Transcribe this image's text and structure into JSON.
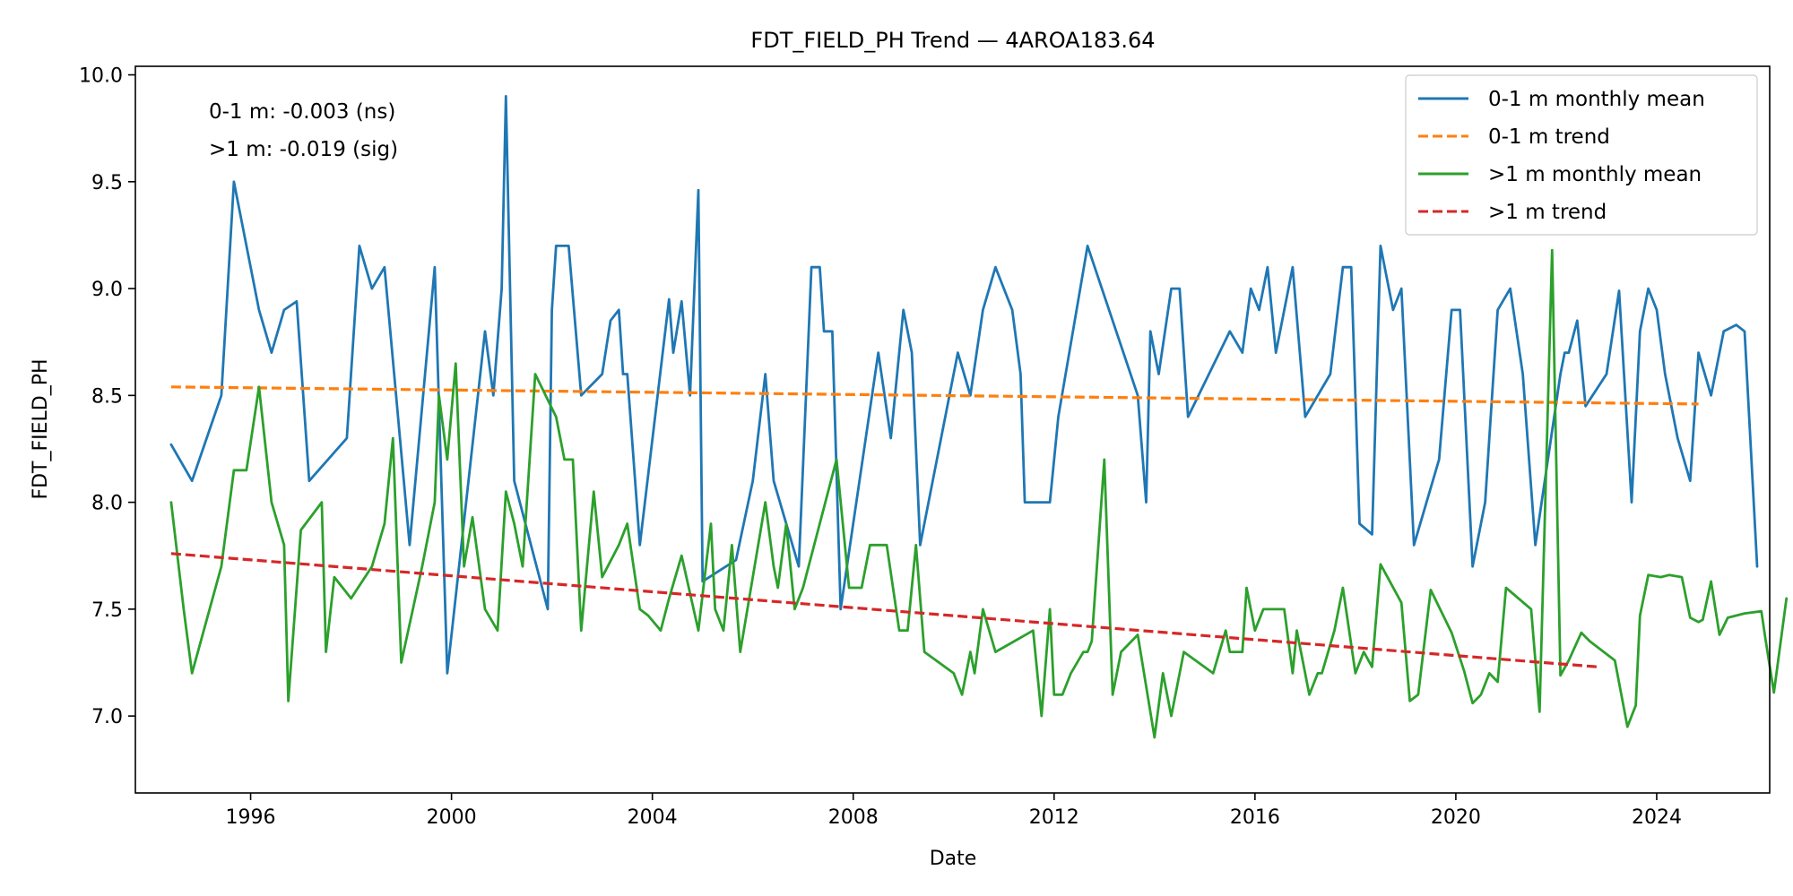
{
  "chart_data": {
    "type": "line",
    "title": "FDT_FIELD_PH Trend — 4AROA183.64",
    "xlabel": "Date",
    "ylabel": "FDT_FIELD_PH",
    "xlim": [
      "1993-09-15",
      "2026-04-01"
    ],
    "ylim": [
      6.64,
      10.04
    ],
    "x_ticks": [
      "1996",
      "2000",
      "2004",
      "2008",
      "2012",
      "2016",
      "2020",
      "2024"
    ],
    "y_ticks": [
      "7.0",
      "7.5",
      "8.0",
      "8.5",
      "9.0",
      "9.5",
      "10.0"
    ],
    "grid": false,
    "legend_position": "top-right",
    "annotations": [
      "0-1 m: -0.003 (ns)",
      ">1 m: -0.019 (sig)"
    ],
    "series": [
      {
        "name": "0-1 m monthly mean",
        "style": "solid",
        "color": "#1f77b4",
        "points": [
          [
            "1994-06",
            8.27
          ],
          [
            "1994-11",
            8.1
          ],
          [
            "1995-06",
            8.5
          ],
          [
            "1995-09",
            9.5
          ],
          [
            "1996-03",
            8.9
          ],
          [
            "1996-06",
            8.7
          ],
          [
            "1996-09",
            8.9
          ],
          [
            "1996-12",
            8.94
          ],
          [
            "1997-03",
            8.1
          ],
          [
            "1997-12",
            8.3
          ],
          [
            "1998-03",
            9.2
          ],
          [
            "1998-06",
            9.0
          ],
          [
            "1998-09",
            9.1
          ],
          [
            "1999-03",
            7.8
          ],
          [
            "1999-09",
            9.1
          ],
          [
            "1999-12",
            7.2
          ],
          [
            "2000-09",
            8.8
          ],
          [
            "2000-11",
            8.5
          ],
          [
            "2001-01",
            9.0
          ],
          [
            "2001-02",
            9.9
          ],
          [
            "2001-04",
            8.1
          ],
          [
            "2001-12",
            7.5
          ],
          [
            "2002-01",
            8.9
          ],
          [
            "2002-02",
            9.2
          ],
          [
            "2002-05",
            9.2
          ],
          [
            "2002-08",
            8.5
          ],
          [
            "2003-01",
            8.6
          ],
          [
            "2003-03",
            8.85
          ],
          [
            "2003-05",
            8.9
          ],
          [
            "2003-06",
            8.6
          ],
          [
            "2003-07",
            8.6
          ],
          [
            "2003-10",
            7.8
          ],
          [
            "2004-05",
            8.95
          ],
          [
            "2004-06",
            8.7
          ],
          [
            "2004-08",
            8.94
          ],
          [
            "2004-10",
            8.5
          ],
          [
            "2004-12",
            9.46
          ],
          [
            "2005-01",
            7.63
          ],
          [
            "2005-09",
            7.73
          ],
          [
            "2006-01",
            8.1
          ],
          [
            "2006-04",
            8.6
          ],
          [
            "2006-06",
            8.1
          ],
          [
            "2006-12",
            7.7
          ],
          [
            "2007-03",
            9.1
          ],
          [
            "2007-05",
            9.1
          ],
          [
            "2007-06",
            8.8
          ],
          [
            "2007-08",
            8.8
          ],
          [
            "2007-10",
            7.5
          ],
          [
            "2008-07",
            8.7
          ],
          [
            "2008-10",
            8.3
          ],
          [
            "2009-01",
            8.9
          ],
          [
            "2009-03",
            8.7
          ],
          [
            "2009-05",
            7.8
          ],
          [
            "2010-02",
            8.7
          ],
          [
            "2010-05",
            8.5
          ],
          [
            "2010-08",
            8.9
          ],
          [
            "2010-11",
            9.1
          ],
          [
            "2011-03",
            8.9
          ],
          [
            "2011-05",
            8.6
          ],
          [
            "2011-06",
            8.0
          ],
          [
            "2011-08",
            8.0
          ],
          [
            "2011-12",
            8.0
          ],
          [
            "2012-02",
            8.4
          ],
          [
            "2012-09",
            9.2
          ],
          [
            "2013-09",
            8.5
          ],
          [
            "2013-11",
            8.0
          ],
          [
            "2013-12",
            8.8
          ],
          [
            "2014-02",
            8.6
          ],
          [
            "2014-05",
            9.0
          ],
          [
            "2014-07",
            9.0
          ],
          [
            "2014-09",
            8.4
          ],
          [
            "2015-07",
            8.8
          ],
          [
            "2015-10",
            8.7
          ],
          [
            "2015-12",
            9.0
          ],
          [
            "2016-02",
            8.9
          ],
          [
            "2016-04",
            9.1
          ],
          [
            "2016-06",
            8.7
          ],
          [
            "2016-10",
            9.1
          ],
          [
            "2017-01",
            8.4
          ],
          [
            "2017-07",
            8.6
          ],
          [
            "2017-10",
            9.1
          ],
          [
            "2017-12",
            9.1
          ],
          [
            "2018-02",
            7.9
          ],
          [
            "2018-05",
            7.85
          ],
          [
            "2018-07",
            9.2
          ],
          [
            "2018-10",
            8.9
          ],
          [
            "2018-12",
            9.0
          ],
          [
            "2019-03",
            7.8
          ],
          [
            "2019-09",
            8.2
          ],
          [
            "2019-12",
            8.9
          ],
          [
            "2020-02",
            8.9
          ],
          [
            "2020-05",
            7.7
          ],
          [
            "2020-08",
            8.0
          ],
          [
            "2020-11",
            8.9
          ],
          [
            "2021-02",
            9.0
          ],
          [
            "2021-05",
            8.6
          ],
          [
            "2021-08",
            7.8
          ],
          [
            "2022-02",
            8.6
          ],
          [
            "2022-03",
            8.7
          ],
          [
            "2022-04",
            8.7
          ],
          [
            "2022-06",
            8.85
          ],
          [
            "2022-08",
            8.45
          ],
          [
            "2023-01",
            8.6
          ],
          [
            "2023-04",
            8.99
          ],
          [
            "2023-07",
            8.0
          ],
          [
            "2023-09",
            8.8
          ],
          [
            "2023-11",
            9.0
          ],
          [
            "2024-01",
            8.9
          ],
          [
            "2024-03",
            8.6
          ],
          [
            "2024-06",
            8.3
          ],
          [
            "2024-09",
            8.1
          ],
          [
            "2024-11",
            8.7
          ],
          [
            "2025-02",
            8.5
          ],
          [
            "2025-05",
            8.8
          ],
          [
            "2025-08",
            8.83
          ],
          [
            "2025-10",
            8.8
          ],
          [
            "2026-01",
            7.7
          ]
        ]
      },
      {
        "name": "0-1 m trend",
        "style": "dashed",
        "color": "#ff7f0e",
        "points": [
          [
            "1994-06",
            8.54
          ],
          [
            "2024-11",
            8.46
          ]
        ]
      },
      {
        "name": ">1 m monthly mean",
        "style": "solid",
        "color": "#2ca02c",
        "points": [
          [
            "1994-06",
            8.0
          ],
          [
            "1994-09",
            7.5
          ],
          [
            "1994-11",
            7.2
          ],
          [
            "1995-06",
            7.7
          ],
          [
            "1995-09",
            8.15
          ],
          [
            "1995-12",
            8.15
          ],
          [
            "1996-03",
            8.54
          ],
          [
            "1996-06",
            8.0
          ],
          [
            "1996-09",
            7.8
          ],
          [
            "1996-10",
            7.07
          ],
          [
            "1997-01",
            7.87
          ],
          [
            "1997-06",
            8.0
          ],
          [
            "1997-07",
            7.3
          ],
          [
            "1997-09",
            7.65
          ],
          [
            "1998-01",
            7.55
          ],
          [
            "1998-06",
            7.7
          ],
          [
            "1998-09",
            7.9
          ],
          [
            "1998-11",
            8.3
          ],
          [
            "1999-01",
            7.25
          ],
          [
            "1999-06",
            7.7
          ],
          [
            "1999-09",
            8.0
          ],
          [
            "1999-10",
            8.5
          ],
          [
            "1999-12",
            8.2
          ],
          [
            "2000-02",
            8.65
          ],
          [
            "2000-04",
            7.7
          ],
          [
            "2000-06",
            7.93
          ],
          [
            "2000-09",
            7.5
          ],
          [
            "2000-12",
            7.4
          ],
          [
            "2001-02",
            8.05
          ],
          [
            "2001-04",
            7.9
          ],
          [
            "2001-06",
            7.7
          ],
          [
            "2001-09",
            8.6
          ],
          [
            "2002-02",
            8.4
          ],
          [
            "2002-04",
            8.2
          ],
          [
            "2002-06",
            8.2
          ],
          [
            "2002-08",
            7.4
          ],
          [
            "2002-11",
            8.05
          ],
          [
            "2003-01",
            7.65
          ],
          [
            "2003-05",
            7.8
          ],
          [
            "2003-07",
            7.9
          ],
          [
            "2003-10",
            7.5
          ],
          [
            "2003-12",
            7.47
          ],
          [
            "2004-03",
            7.4
          ],
          [
            "2004-05",
            7.55
          ],
          [
            "2004-08",
            7.75
          ],
          [
            "2004-12",
            7.4
          ],
          [
            "2005-03",
            7.9
          ],
          [
            "2005-04",
            7.5
          ],
          [
            "2005-06",
            7.4
          ],
          [
            "2005-08",
            7.8
          ],
          [
            "2005-10",
            7.3
          ],
          [
            "2006-04",
            8.0
          ],
          [
            "2006-06",
            7.7
          ],
          [
            "2006-07",
            7.6
          ],
          [
            "2006-09",
            7.9
          ],
          [
            "2006-11",
            7.5
          ],
          [
            "2007-01",
            7.6
          ],
          [
            "2007-09",
            8.2
          ],
          [
            "2007-12",
            7.6
          ],
          [
            "2008-03",
            7.6
          ],
          [
            "2008-05",
            7.8
          ],
          [
            "2008-09",
            7.8
          ],
          [
            "2008-12",
            7.4
          ],
          [
            "2009-02",
            7.4
          ],
          [
            "2009-04",
            7.8
          ],
          [
            "2009-06",
            7.3
          ],
          [
            "2010-01",
            7.2
          ],
          [
            "2010-03",
            7.1
          ],
          [
            "2010-05",
            7.3
          ],
          [
            "2010-06",
            7.2
          ],
          [
            "2010-08",
            7.5
          ],
          [
            "2010-11",
            7.3
          ],
          [
            "2011-08",
            7.4
          ],
          [
            "2011-10",
            7.0
          ],
          [
            "2011-12",
            7.5
          ],
          [
            "2012-01",
            7.1
          ],
          [
            "2012-03",
            7.1
          ],
          [
            "2012-05",
            7.2
          ],
          [
            "2012-08",
            7.3
          ],
          [
            "2012-09",
            7.3
          ],
          [
            "2012-10",
            7.35
          ],
          [
            "2013-01",
            8.2
          ],
          [
            "2013-03",
            7.1
          ],
          [
            "2013-05",
            7.3
          ],
          [
            "2013-09",
            7.38
          ],
          [
            "2014-01",
            6.9
          ],
          [
            "2014-03",
            7.2
          ],
          [
            "2014-05",
            7.0
          ],
          [
            "2014-08",
            7.3
          ],
          [
            "2015-03",
            7.2
          ],
          [
            "2015-06",
            7.4
          ],
          [
            "2015-07",
            7.3
          ],
          [
            "2015-10",
            7.3
          ],
          [
            "2015-11",
            7.6
          ],
          [
            "2016-01",
            7.4
          ],
          [
            "2016-03",
            7.5
          ],
          [
            "2016-06",
            7.5
          ],
          [
            "2016-08",
            7.5
          ],
          [
            "2016-10",
            7.2
          ],
          [
            "2016-11",
            7.4
          ],
          [
            "2017-02",
            7.1
          ],
          [
            "2017-04",
            7.2
          ],
          [
            "2017-05",
            7.2
          ],
          [
            "2017-08",
            7.4
          ],
          [
            "2017-10",
            7.6
          ],
          [
            "2018-01",
            7.2
          ],
          [
            "2018-03",
            7.3
          ],
          [
            "2018-05",
            7.23
          ],
          [
            "2018-07",
            7.71
          ],
          [
            "2018-12",
            7.53
          ],
          [
            "2019-02",
            7.07
          ],
          [
            "2019-04",
            7.1
          ],
          [
            "2019-07",
            7.59
          ],
          [
            "2019-12",
            7.39
          ],
          [
            "2020-03",
            7.21
          ],
          [
            "2020-05",
            7.06
          ],
          [
            "2020-07",
            7.1
          ],
          [
            "2020-09",
            7.2
          ],
          [
            "2020-11",
            7.16
          ],
          [
            "2021-01",
            7.6
          ],
          [
            "2021-07",
            7.5
          ],
          [
            "2021-09",
            7.02
          ],
          [
            "2021-12",
            9.18
          ],
          [
            "2022-02",
            7.19
          ],
          [
            "2022-04",
            7.26
          ],
          [
            "2022-07",
            7.39
          ],
          [
            "2022-09",
            7.35
          ],
          [
            "2023-03",
            7.26
          ],
          [
            "2023-06",
            6.95
          ],
          [
            "2023-08",
            7.05
          ],
          [
            "2023-09",
            7.47
          ],
          [
            "2023-11",
            7.66
          ],
          [
            "2024-02",
            7.65
          ],
          [
            "2024-04",
            7.66
          ],
          [
            "2024-07",
            7.65
          ],
          [
            "2024-09",
            7.46
          ],
          [
            "2024-11",
            7.44
          ],
          [
            "2024-12",
            7.45
          ],
          [
            "2025-02",
            7.63
          ],
          [
            "2025-04",
            7.38
          ],
          [
            "2025-06",
            7.46
          ],
          [
            "2025-10",
            7.48
          ],
          [
            "2026-02",
            7.49
          ],
          [
            "2026-03",
            7.36
          ],
          [
            "2026-05",
            7.11
          ],
          [
            "2026-08",
            7.55
          ]
        ]
      },
      {
        "name": ">1 m trend",
        "style": "dashed",
        "color": "#d62728",
        "points": [
          [
            "1994-06",
            7.76
          ],
          [
            "2022-11",
            7.23
          ]
        ]
      }
    ]
  }
}
